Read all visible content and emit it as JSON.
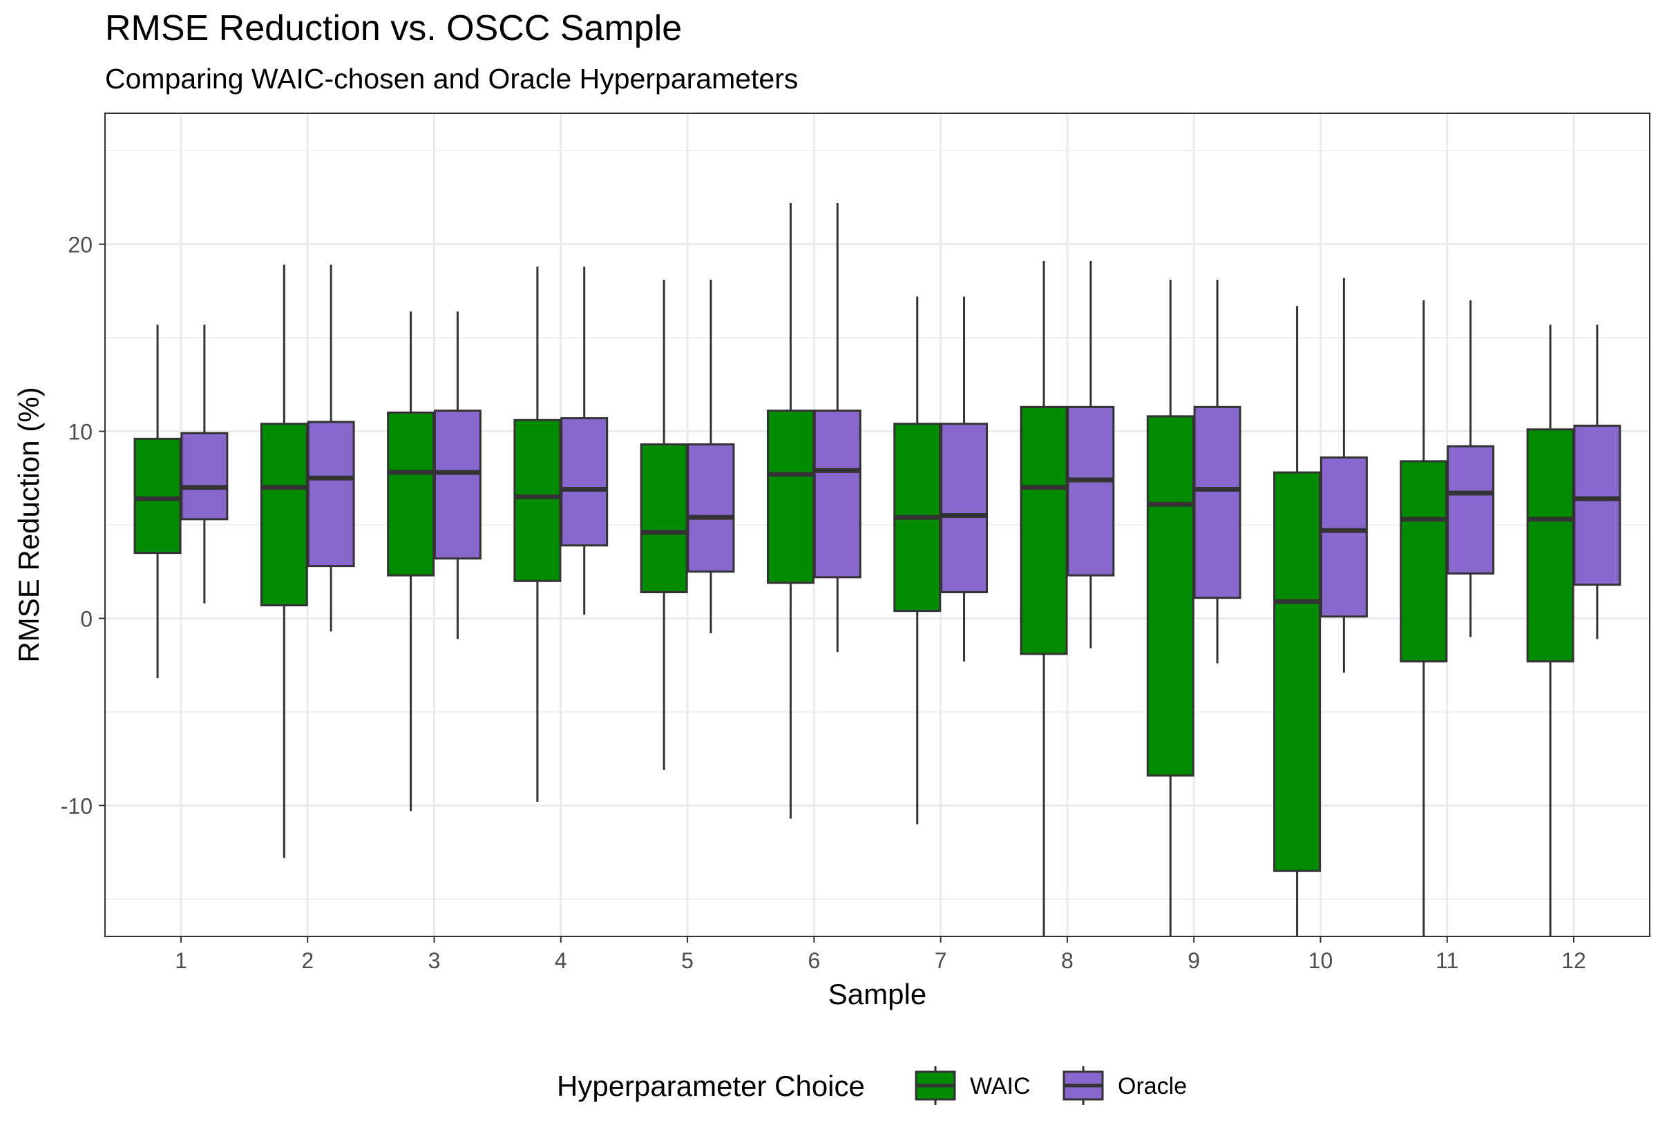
{
  "chart_data": {
    "type": "boxplot",
    "title": "RMSE Reduction vs. OSCC Sample",
    "subtitle": "Comparing WAIC-chosen and Oracle Hyperparameters",
    "xlabel": "Sample",
    "ylabel": "RMSE Reduction (%)",
    "ylim": [
      -17,
      27
    ],
    "yticks": [
      -10,
      0,
      10,
      20
    ],
    "grid": true,
    "legend": {
      "title": "Hyperparameter Choice",
      "position": "bottom",
      "entries": [
        "WAIC",
        "Oracle"
      ]
    },
    "colors": {
      "WAIC": "#008b00",
      "Oracle": "#8968cd",
      "outline": "#333333",
      "grid": "#ebebeb",
      "panel_border": "#333333"
    },
    "categories": [
      "1",
      "2",
      "3",
      "4",
      "5",
      "6",
      "7",
      "8",
      "9",
      "10",
      "11",
      "12"
    ],
    "series": [
      {
        "name": "WAIC",
        "boxes": [
          {
            "min": -3.2,
            "q1": 3.5,
            "median": 6.4,
            "q3": 9.6,
            "max": 15.7
          },
          {
            "min": -12.8,
            "q1": 0.7,
            "median": 7.0,
            "q3": 10.4,
            "max": 18.9
          },
          {
            "min": -10.3,
            "q1": 2.3,
            "median": 7.8,
            "q3": 11.0,
            "max": 16.4
          },
          {
            "min": -9.8,
            "q1": 2.0,
            "median": 6.5,
            "q3": 10.6,
            "max": 18.8
          },
          {
            "min": -8.1,
            "q1": 1.4,
            "median": 4.6,
            "q3": 9.3,
            "max": 18.1
          },
          {
            "min": -10.7,
            "q1": 1.9,
            "median": 7.7,
            "q3": 11.1,
            "max": 22.2
          },
          {
            "min": -11.0,
            "q1": 0.4,
            "median": 5.4,
            "q3": 10.4,
            "max": 17.2
          },
          {
            "min": -17.0,
            "q1": -1.9,
            "median": 7.0,
            "q3": 11.3,
            "max": 19.1
          },
          {
            "min": -17.0,
            "q1": -8.4,
            "median": 6.1,
            "q3": 10.8,
            "max": 18.1
          },
          {
            "min": -17.0,
            "q1": -13.5,
            "median": 0.9,
            "q3": 7.8,
            "max": 16.7
          },
          {
            "min": -17.0,
            "q1": -2.3,
            "median": 5.3,
            "q3": 8.4,
            "max": 17.0
          },
          {
            "min": -17.0,
            "q1": -2.3,
            "median": 5.3,
            "q3": 10.1,
            "max": 15.7
          }
        ]
      },
      {
        "name": "Oracle",
        "boxes": [
          {
            "min": 0.8,
            "q1": 5.3,
            "median": 7.0,
            "q3": 9.9,
            "max": 15.7
          },
          {
            "min": -0.7,
            "q1": 2.8,
            "median": 7.5,
            "q3": 10.5,
            "max": 18.9
          },
          {
            "min": -1.1,
            "q1": 3.2,
            "median": 7.8,
            "q3": 11.1,
            "max": 16.4
          },
          {
            "min": 0.2,
            "q1": 3.9,
            "median": 6.9,
            "q3": 10.7,
            "max": 18.8
          },
          {
            "min": -0.8,
            "q1": 2.5,
            "median": 5.4,
            "q3": 9.3,
            "max": 18.1
          },
          {
            "min": -1.8,
            "q1": 2.2,
            "median": 7.9,
            "q3": 11.1,
            "max": 22.2
          },
          {
            "min": -2.3,
            "q1": 1.4,
            "median": 5.5,
            "q3": 10.4,
            "max": 17.2
          },
          {
            "min": -1.6,
            "q1": 2.3,
            "median": 7.4,
            "q3": 11.3,
            "max": 19.1
          },
          {
            "min": -2.4,
            "q1": 1.1,
            "median": 6.9,
            "q3": 11.3,
            "max": 18.1
          },
          {
            "min": -2.9,
            "q1": 0.1,
            "median": 4.7,
            "q3": 8.6,
            "max": 18.2
          },
          {
            "min": -1.0,
            "q1": 2.4,
            "median": 6.7,
            "q3": 9.2,
            "max": 17.0
          },
          {
            "min": -1.1,
            "q1": 1.8,
            "median": 6.4,
            "q3": 10.3,
            "max": 15.7
          }
        ]
      }
    ]
  }
}
